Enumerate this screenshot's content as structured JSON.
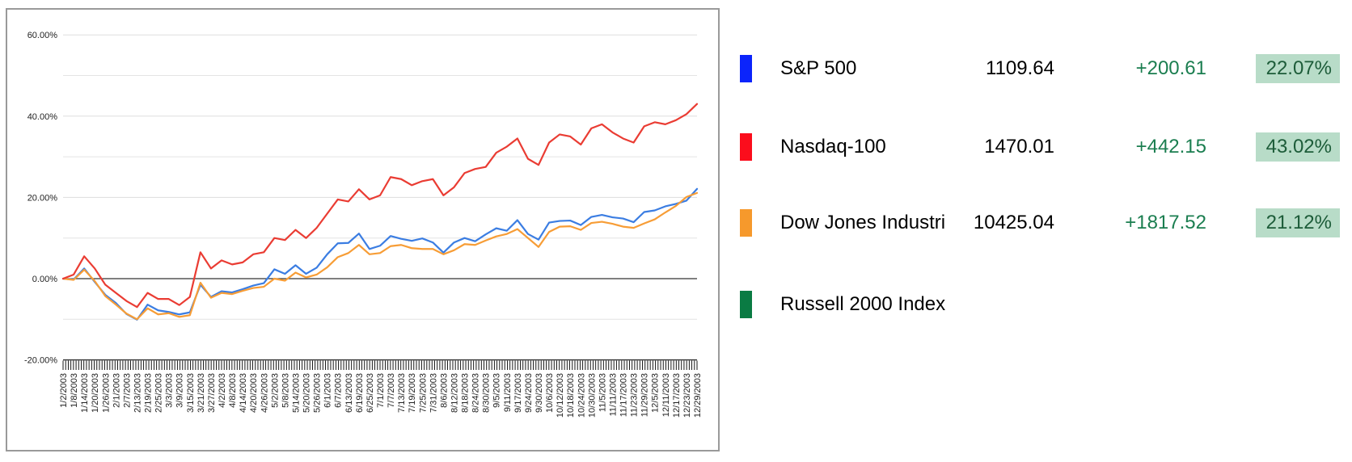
{
  "legend": {
    "rows": [
      {
        "name": "S&P 500",
        "value": "1109.64",
        "change": "+200.61",
        "pct": "22.07%",
        "swatch_color": "#0b24fb"
      },
      {
        "name": "Nasdaq-100",
        "value": "1470.01",
        "change": "+442.15",
        "pct": "43.02%",
        "swatch_color": "#fb0d1c"
      },
      {
        "name": "Dow Jones Industrial Average",
        "value": "10425.04",
        "change": "+1817.52",
        "pct": "21.12%",
        "swatch_color": "#f6992c"
      },
      {
        "name": "Russell 2000 Index",
        "swatch_color": "#0a7b43"
      }
    ],
    "change_text_color": "#1b7e50",
    "pct_box_bg": "#b8dcc8",
    "pct_text_color": "#1d5c39"
  },
  "chart_data": {
    "type": "line",
    "title": "",
    "xlabel": "",
    "ylabel": "",
    "ylim": [
      -20,
      60
    ],
    "grid": true,
    "y_tick_labels": [
      "60.00%",
      "40.00%",
      "20.00%",
      "0.00%",
      "-20.00%"
    ],
    "y_major_ticks": [
      60,
      40,
      20,
      0,
      -20
    ],
    "y_minor_ticks": [
      50,
      30,
      10,
      -10
    ],
    "zero_line": 0,
    "x_labels": [
      "1/2/2003",
      "1/8/2003",
      "1/14/2003",
      "1/20/2003",
      "1/26/2003",
      "2/1/2003",
      "2/7/2003",
      "2/13/2003",
      "2/19/2003",
      "2/25/2003",
      "3/3/2003",
      "3/9/2003",
      "3/15/2003",
      "3/21/2003",
      "3/27/2003",
      "4/2/2003",
      "4/8/2003",
      "4/14/2003",
      "4/20/2003",
      "4/26/2003",
      "5/2/2003",
      "5/8/2003",
      "5/14/2003",
      "5/20/2003",
      "5/26/2003",
      "6/1/2003",
      "6/7/2003",
      "6/13/2003",
      "6/19/2003",
      "6/25/2003",
      "7/1/2003",
      "7/7/2003",
      "7/13/2003",
      "7/19/2003",
      "7/25/2003",
      "7/31/2003",
      "8/6/2003",
      "8/12/2003",
      "8/18/2003",
      "8/24/2003",
      "8/30/2003",
      "9/5/2003",
      "9/11/2003",
      "9/17/2003",
      "9/24/2003",
      "9/30/2003",
      "10/6/2003",
      "10/12/2003",
      "10/18/2003",
      "10/24/2003",
      "10/30/2003",
      "11/5/2003",
      "11/11/2003",
      "11/17/2003",
      "11/23/2003",
      "11/29/2003",
      "12/5/2003",
      "12/11/2003",
      "12/17/2003",
      "12/23/2003",
      "12/29/2003"
    ],
    "series": [
      {
        "name": "S&P 500",
        "line_color": "#3b7de2",
        "unit": "% change since 1/2/2003",
        "values": [
          0,
          -0.2,
          2.5,
          -0.8,
          -4.0,
          -6.0,
          -8.7,
          -10.1,
          -6.4,
          -7.8,
          -8.2,
          -8.8,
          -8.3,
          -1.5,
          -4.5,
          -3.1,
          -3.4,
          -2.6,
          -1.7,
          -1.1,
          2.3,
          1.2,
          3.3,
          1.2,
          2.7,
          6.0,
          8.7,
          8.8,
          11.1,
          7.3,
          8.1,
          10.5,
          9.8,
          9.3,
          9.9,
          8.9,
          6.4,
          8.9,
          10.0,
          9.2,
          10.9,
          12.4,
          11.8,
          14.4,
          11.0,
          9.6,
          13.8,
          14.2,
          14.3,
          13.2,
          15.2,
          15.7,
          15.1,
          14.8,
          13.9,
          16.4,
          16.8,
          17.8,
          18.4,
          19.2,
          22.1
        ]
      },
      {
        "name": "Nasdaq-100",
        "line_color": "#ea3c33",
        "unit": "% change since 1/2/2003",
        "values": [
          0,
          1.0,
          5.5,
          2.5,
          -1.5,
          -3.5,
          -5.5,
          -7.0,
          -3.5,
          -5.0,
          -5.0,
          -6.5,
          -4.5,
          6.5,
          2.5,
          4.5,
          3.5,
          4.0,
          6.0,
          6.5,
          10.0,
          9.5,
          12.0,
          10.0,
          12.5,
          16.0,
          19.5,
          19.0,
          22.0,
          19.5,
          20.5,
          25.0,
          24.5,
          23.0,
          24.0,
          24.5,
          20.5,
          22.5,
          26.0,
          27.0,
          27.5,
          31.0,
          32.5,
          34.5,
          29.5,
          28.0,
          33.5,
          35.5,
          35.0,
          33.0,
          37.0,
          38.0,
          36.0,
          34.5,
          33.5,
          37.5,
          38.5,
          38.0,
          39.0,
          40.5,
          43.0
        ]
      },
      {
        "name": "Dow Jones Industrial Average",
        "line_color": "#f79d36",
        "unit": "% change since 1/2/2003",
        "values": [
          0,
          -0.3,
          2.2,
          -0.6,
          -4.3,
          -6.4,
          -8.6,
          -10.0,
          -7.3,
          -8.8,
          -8.5,
          -9.4,
          -9.0,
          -1.0,
          -4.7,
          -3.5,
          -3.8,
          -3.0,
          -2.3,
          -2.0,
          0.0,
          -0.5,
          1.5,
          0.3,
          1.0,
          2.8,
          5.3,
          6.3,
          8.3,
          6.0,
          6.3,
          8.0,
          8.3,
          7.5,
          7.3,
          7.3,
          6.0,
          7.0,
          8.5,
          8.3,
          9.4,
          10.4,
          11.0,
          12.2,
          10.0,
          7.8,
          11.5,
          12.8,
          12.9,
          12.0,
          13.7,
          14.0,
          13.5,
          12.8,
          12.5,
          13.6,
          14.6,
          16.3,
          17.9,
          20.1,
          21.1
        ]
      }
    ],
    "legend_position": "right"
  }
}
